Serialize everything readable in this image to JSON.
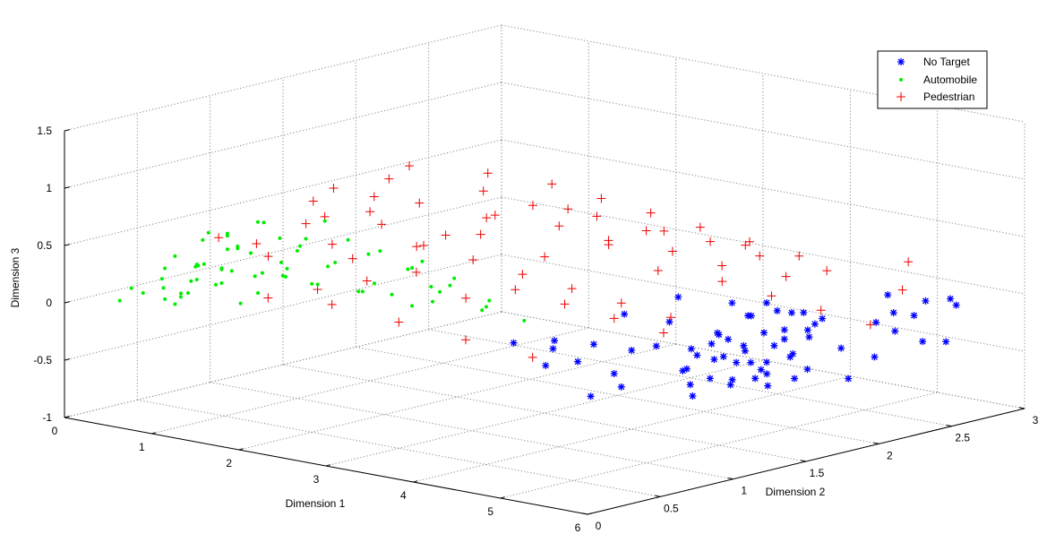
{
  "chart_data": {
    "type": "scatter",
    "projection": "3d",
    "title": "",
    "xlabel": "Dimension 1",
    "ylabel": "Dimension 2",
    "zlabel": "Dimension 3",
    "xlim": [
      0,
      6
    ],
    "ylim": [
      0,
      3
    ],
    "zlim": [
      -1,
      1.5
    ],
    "x_ticks": [
      "0",
      "1",
      "2",
      "3",
      "4",
      "5",
      "6"
    ],
    "y_ticks": [
      "0",
      "0.5",
      "1",
      "1.5",
      "2",
      "2.5",
      "3"
    ],
    "z_ticks": [
      "-1",
      "-0.5",
      "0",
      "0.5",
      "1",
      "1.5"
    ],
    "grid": true,
    "legend_position": "top-right",
    "colors": {
      "No Target": "#0000ff",
      "Automobile": "#00ee00",
      "Pedestrian": "#ee0000"
    },
    "series": [
      {
        "name": "No Target",
        "marker": "asterisk",
        "color": "#0000ff",
        "points": [
          [
            5.1,
            1.62,
            -0.2
          ],
          [
            5.2,
            1.5,
            -0.25
          ],
          [
            5.3,
            1.7,
            -0.15
          ],
          [
            5.4,
            1.55,
            -0.3
          ],
          [
            5.0,
            1.45,
            -0.1
          ],
          [
            5.25,
            1.8,
            -0.05
          ],
          [
            5.15,
            1.35,
            -0.35
          ],
          [
            5.35,
            1.6,
            0.0
          ],
          [
            4.95,
            1.7,
            -0.2
          ],
          [
            5.45,
            1.85,
            -0.1
          ],
          [
            5.05,
            1.25,
            -0.25
          ],
          [
            5.22,
            1.95,
            0.05
          ],
          [
            5.3,
            1.4,
            -0.4
          ],
          [
            4.9,
            1.55,
            -0.05
          ],
          [
            5.4,
            1.75,
            -0.25
          ],
          [
            5.12,
            1.65,
            0.1
          ],
          [
            5.28,
            1.3,
            -0.15
          ],
          [
            5.18,
            1.9,
            -0.3
          ],
          [
            5.5,
            1.65,
            -0.05
          ],
          [
            4.85,
            1.4,
            -0.15
          ],
          [
            5.08,
            1.78,
            -0.35
          ],
          [
            5.35,
            2.0,
            0.0
          ],
          [
            5.2,
            1.2,
            -0.45
          ],
          [
            5.45,
            1.45,
            -0.2
          ],
          [
            5.0,
            1.9,
            0.05
          ],
          [
            5.25,
            1.55,
            0.15
          ],
          [
            4.92,
            1.3,
            -0.3
          ],
          [
            5.38,
            1.88,
            -0.4
          ],
          [
            5.14,
            1.48,
            -0.05
          ],
          [
            5.3,
            1.82,
            0.1
          ],
          [
            5.55,
            1.5,
            -0.3
          ],
          [
            4.8,
            1.62,
            -0.1
          ],
          [
            5.02,
            1.58,
            -0.45
          ],
          [
            5.42,
            1.28,
            -0.1
          ],
          [
            5.1,
            2.05,
            -0.15
          ],
          [
            5.26,
            1.68,
            -0.5
          ],
          [
            5.6,
            1.8,
            0.05
          ],
          [
            4.75,
            1.5,
            -0.25
          ],
          [
            5.34,
            1.1,
            -0.3
          ],
          [
            5.18,
            1.72,
            0.2
          ],
          [
            4.7,
            1.25,
            -0.1
          ],
          [
            5.65,
            1.95,
            -0.2
          ],
          [
            4.6,
            1.4,
            0.05
          ],
          [
            5.7,
            1.6,
            -0.35
          ],
          [
            4.5,
            1.2,
            -0.15
          ],
          [
            5.8,
            2.1,
            0.0
          ],
          [
            4.4,
            1.0,
            -0.05
          ],
          [
            5.75,
            1.3,
            -0.25
          ],
          [
            4.65,
            1.8,
            0.1
          ],
          [
            5.9,
            1.85,
            -0.4
          ],
          [
            4.3,
            0.95,
            -0.2
          ],
          [
            5.85,
            2.2,
            -0.1
          ],
          [
            4.55,
            1.05,
            -0.3
          ],
          [
            5.6,
            2.3,
            0.15
          ],
          [
            4.2,
            0.85,
            0.0
          ],
          [
            5.95,
            2.0,
            -0.25
          ],
          [
            4.45,
            1.55,
            0.2
          ],
          [
            5.5,
            2.4,
            -0.05
          ],
          [
            4.35,
            0.7,
            -0.15
          ],
          [
            5.7,
            2.5,
            0.05
          ],
          [
            4.1,
            0.9,
            -0.1
          ],
          [
            6.0,
            2.3,
            -0.2
          ],
          [
            4.8,
            0.95,
            -0.35
          ],
          [
            5.4,
            2.6,
            -0.15
          ],
          [
            4.25,
            1.3,
            0.1
          ],
          [
            5.85,
            2.55,
            -0.3
          ],
          [
            4.15,
            0.6,
            0.05
          ],
          [
            5.65,
            2.7,
            0.0
          ],
          [
            4.7,
            0.8,
            -0.4
          ],
          [
            5.55,
            2.8,
            -0.1
          ]
        ]
      },
      {
        "name": "Automobile",
        "marker": "point",
        "color": "#00ee00",
        "points": [
          [
            0.4,
            0.3,
            0.05
          ],
          [
            0.55,
            0.35,
            0.1
          ],
          [
            0.7,
            0.45,
            0.15
          ],
          [
            0.85,
            0.4,
            0.2
          ],
          [
            1.0,
            0.55,
            0.25
          ],
          [
            0.5,
            0.5,
            0.0
          ],
          [
            0.65,
            0.3,
            0.3
          ],
          [
            0.8,
            0.6,
            0.1
          ],
          [
            0.95,
            0.35,
            0.35
          ],
          [
            1.1,
            0.7,
            0.2
          ],
          [
            0.45,
            0.4,
            0.15
          ],
          [
            0.6,
            0.55,
            0.25
          ],
          [
            0.75,
            0.35,
            0.05
          ],
          [
            0.9,
            0.65,
            0.4
          ],
          [
            1.05,
            0.45,
            0.3
          ],
          [
            1.2,
            0.8,
            0.15
          ],
          [
            0.35,
            0.25,
            0.1
          ],
          [
            0.5,
            0.6,
            0.2
          ],
          [
            0.7,
            0.7,
            0.35
          ],
          [
            0.85,
            0.25,
            0.45
          ],
          [
            1.0,
            0.9,
            0.1
          ],
          [
            1.15,
            0.5,
            0.5
          ],
          [
            1.3,
            0.75,
            0.25
          ],
          [
            0.6,
            0.4,
            -0.05
          ],
          [
            0.8,
            0.8,
            0.3
          ],
          [
            0.95,
            0.55,
            0.55
          ],
          [
            1.1,
            0.3,
            0.4
          ],
          [
            1.25,
            0.95,
            0.05
          ],
          [
            1.4,
            0.65,
            0.35
          ],
          [
            0.55,
            0.75,
            0.15
          ],
          [
            0.75,
            0.5,
            0.5
          ],
          [
            0.9,
            0.45,
            0.6
          ],
          [
            1.05,
            0.85,
            0.45
          ],
          [
            1.2,
            0.4,
            0.65
          ],
          [
            1.35,
            1.0,
            0.2
          ],
          [
            1.5,
            0.7,
            0.45
          ],
          [
            1.6,
            0.9,
            0.3
          ],
          [
            1.7,
            0.6,
            0.55
          ],
          [
            1.8,
            1.05,
            0.1
          ],
          [
            1.65,
            0.8,
            0.7
          ],
          [
            1.9,
            0.95,
            0.4
          ],
          [
            2.0,
            0.75,
            0.6
          ],
          [
            2.1,
            1.1,
            0.25
          ],
          [
            2.2,
            0.85,
            0.5
          ],
          [
            2.3,
            1.2,
            0.05
          ],
          [
            2.4,
            0.95,
            0.35
          ],
          [
            2.5,
            1.15,
            0.15
          ],
          [
            2.6,
            0.9,
            0.45
          ],
          [
            2.7,
            1.3,
            0.0
          ],
          [
            2.8,
            1.0,
            0.3
          ],
          [
            1.45,
            0.5,
            0.75
          ],
          [
            1.55,
            0.4,
            0.8
          ],
          [
            1.75,
            1.2,
            -0.05
          ],
          [
            1.85,
            0.55,
            0.65
          ],
          [
            2.05,
            1.3,
            -0.1
          ],
          [
            2.25,
            0.7,
            0.2
          ],
          [
            2.45,
            1.4,
            -0.15
          ],
          [
            2.65,
            0.8,
            0.1
          ],
          [
            2.85,
            1.45,
            -0.2
          ],
          [
            3.0,
            1.1,
            0.05
          ],
          [
            0.3,
            0.2,
            0.0
          ],
          [
            0.4,
            0.45,
            -0.05
          ],
          [
            0.65,
            0.65,
            0.05
          ],
          [
            0.85,
            0.7,
            -0.1
          ],
          [
            1.0,
            0.25,
            0.15
          ],
          [
            1.15,
            1.05,
            0.0
          ],
          [
            1.3,
            0.55,
            0.1
          ],
          [
            1.45,
            1.15,
            -0.05
          ],
          [
            1.6,
            0.35,
            0.35
          ],
          [
            1.95,
            1.35,
            0.0
          ]
        ]
      },
      {
        "name": "Pedestrian",
        "marker": "plus",
        "color": "#ee0000",
        "points": [
          [
            1.0,
            0.8,
            0.3
          ],
          [
            1.2,
            0.6,
            0.5
          ],
          [
            1.4,
            1.0,
            0.4
          ],
          [
            1.6,
            0.7,
            0.7
          ],
          [
            1.8,
            1.1,
            0.6
          ],
          [
            2.0,
            0.9,
            0.8
          ],
          [
            2.2,
            1.3,
            0.5
          ],
          [
            2.4,
            1.0,
            0.9
          ],
          [
            2.6,
            1.4,
            0.7
          ],
          [
            2.8,
            1.2,
            1.0
          ],
          [
            3.0,
            1.6,
            0.6
          ],
          [
            3.2,
            1.3,
            0.9
          ],
          [
            3.4,
            1.7,
            0.5
          ],
          [
            3.6,
            1.5,
            0.8
          ],
          [
            3.8,
            1.9,
            0.4
          ],
          [
            4.0,
            1.6,
            0.7
          ],
          [
            4.2,
            2.0,
            0.3
          ],
          [
            4.4,
            1.8,
            0.6
          ],
          [
            4.6,
            2.2,
            0.2
          ],
          [
            4.8,
            1.9,
            0.5
          ],
          [
            1.3,
            1.2,
            0.2
          ],
          [
            1.5,
            0.5,
            0.1
          ],
          [
            1.7,
            1.4,
            0.3
          ],
          [
            1.9,
            0.6,
            0.2
          ],
          [
            2.1,
            1.6,
            0.4
          ],
          [
            2.3,
            0.7,
            0.3
          ],
          [
            2.5,
            1.8,
            0.2
          ],
          [
            2.7,
            0.8,
            0.4
          ],
          [
            2.9,
            2.0,
            0.3
          ],
          [
            3.1,
            0.9,
            0.2
          ],
          [
            3.3,
            2.1,
            0.1
          ],
          [
            3.5,
            1.0,
            0.3
          ],
          [
            3.7,
            2.3,
            0.0
          ],
          [
            3.9,
            1.1,
            0.2
          ],
          [
            4.1,
            2.4,
            -0.1
          ],
          [
            4.3,
            1.2,
            0.1
          ],
          [
            4.5,
            2.5,
            -0.2
          ],
          [
            4.7,
            1.3,
            0.0
          ],
          [
            4.9,
            2.6,
            -0.3
          ],
          [
            5.1,
            2.7,
            0.0
          ],
          [
            1.1,
            0.4,
            0.6
          ],
          [
            1.35,
            0.9,
            0.8
          ],
          [
            1.55,
            1.3,
            0.9
          ],
          [
            1.75,
            0.8,
            1.0
          ],
          [
            1.95,
            1.2,
            1.1
          ],
          [
            2.15,
            0.5,
            0.9
          ],
          [
            2.35,
            1.5,
            1.0
          ],
          [
            2.55,
            0.6,
            1.1
          ],
          [
            2.75,
            1.7,
            0.9
          ],
          [
            2.95,
            0.7,
            0.7
          ],
          [
            3.15,
            1.8,
            0.8
          ],
          [
            3.35,
            0.8,
            0.6
          ],
          [
            3.55,
            1.9,
            0.7
          ],
          [
            3.75,
            0.9,
            0.5
          ],
          [
            3.95,
            2.0,
            0.6
          ],
          [
            4.15,
            1.0,
            0.4
          ],
          [
            4.35,
            2.1,
            0.5
          ],
          [
            4.55,
            1.1,
            0.3
          ],
          [
            4.75,
            2.2,
            0.4
          ],
          [
            4.95,
            1.2,
            0.2
          ],
          [
            2.0,
            1.7,
            0.5
          ],
          [
            2.6,
            1.9,
            0.6
          ],
          [
            3.2,
            2.2,
            0.4
          ],
          [
            3.8,
            2.4,
            0.3
          ],
          [
            4.4,
            2.6,
            0.1
          ],
          [
            5.0,
            2.8,
            0.2
          ],
          [
            2.4,
            0.4,
            0.2
          ],
          [
            3.0,
            0.5,
            0.1
          ],
          [
            3.6,
            0.6,
            0.0
          ],
          [
            4.2,
            0.7,
            -0.1
          ]
        ]
      }
    ]
  }
}
